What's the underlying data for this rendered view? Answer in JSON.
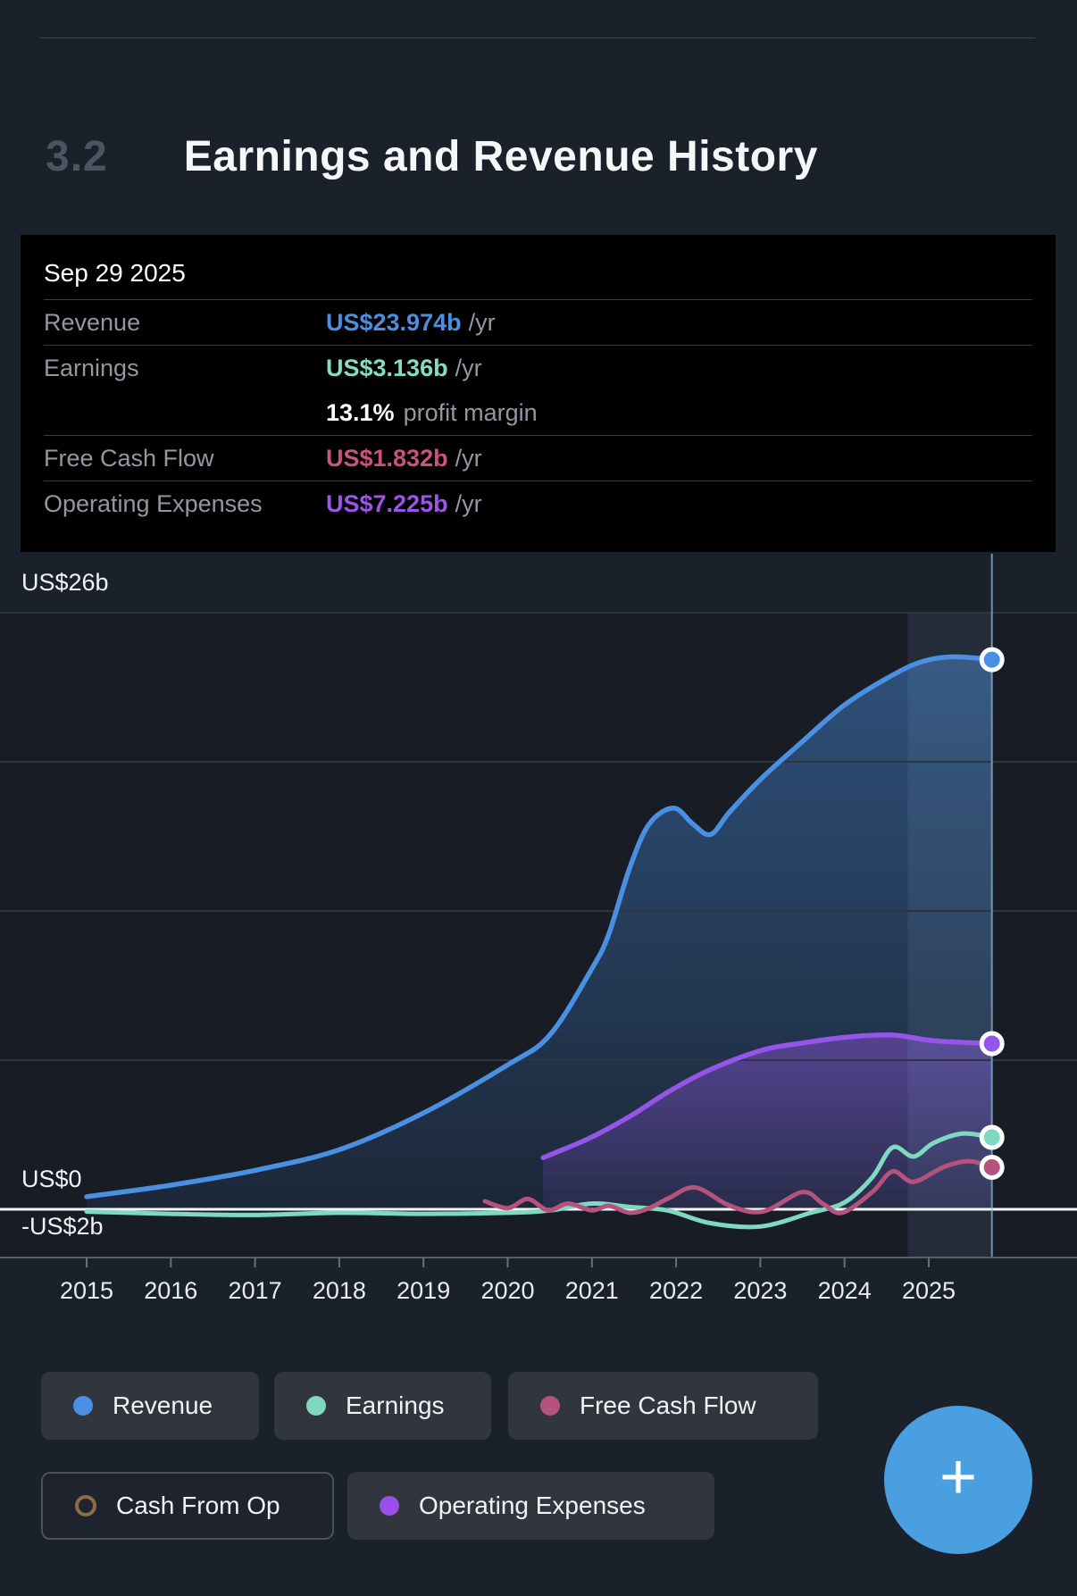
{
  "section": {
    "number": "3.2",
    "title": "Earnings and Revenue History"
  },
  "tooltip": {
    "date": "Sep 29 2025",
    "rows": [
      {
        "label": "Revenue",
        "value": "US$23.974b",
        "suffix": "/yr",
        "color": "#4d8ee0"
      },
      {
        "label": "Earnings",
        "value": "US$3.136b",
        "suffix": "/yr",
        "color": "#85dcc6"
      },
      {
        "label": "Free Cash Flow",
        "value": "US$1.832b",
        "suffix": "/yr",
        "color": "#c9527f"
      },
      {
        "label": "Operating Expenses",
        "value": "US$7.225b",
        "suffix": "/yr",
        "color": "#9b55e8"
      }
    ],
    "profit_margin_value": "13.1%",
    "profit_margin_label": "profit margin"
  },
  "chart_data": {
    "type": "area",
    "title": "Earnings and Revenue History",
    "xlabel": "",
    "ylabel": "",
    "ylim": [
      -2,
      26
    ],
    "x_range": [
      2015,
      2025.75
    ],
    "grid": true,
    "legend_position": "bottom",
    "y_axis_labels": {
      "top": "US$26b",
      "zero": "US$0",
      "bottom": "-US$2b"
    },
    "x_ticks": [
      "2015",
      "2016",
      "2017",
      "2018",
      "2019",
      "2020",
      "2021",
      "2022",
      "2023",
      "2024",
      "2025"
    ],
    "highlight_band_years": [
      2024.75,
      2025.75
    ],
    "crosshair_year": 2025.75,
    "series": [
      {
        "name": "Revenue",
        "color": "#4a90e2",
        "fill": true,
        "points": [
          [
            2015.0,
            0.55
          ],
          [
            2016.0,
            1.05
          ],
          [
            2017.0,
            1.7
          ],
          [
            2018.0,
            2.6
          ],
          [
            2019.0,
            4.2
          ],
          [
            2020.0,
            6.3
          ],
          [
            2020.5,
            7.6
          ],
          [
            2021.0,
            10.5
          ],
          [
            2021.2,
            12.0
          ],
          [
            2021.45,
            14.9
          ],
          [
            2021.68,
            16.8
          ],
          [
            2021.97,
            17.5
          ],
          [
            2022.2,
            16.8
          ],
          [
            2022.41,
            16.35
          ],
          [
            2022.64,
            17.35
          ],
          [
            2023.03,
            18.85
          ],
          [
            2023.5,
            20.4
          ],
          [
            2024.0,
            22.0
          ],
          [
            2024.57,
            23.3
          ],
          [
            2024.93,
            23.9
          ],
          [
            2025.29,
            24.1
          ],
          [
            2025.75,
            23.974
          ]
        ]
      },
      {
        "name": "Operating Expenses",
        "color": "#9455e8",
        "fill": true,
        "points": [
          [
            2020.42,
            2.25
          ],
          [
            2020.72,
            2.7
          ],
          [
            2021.0,
            3.15
          ],
          [
            2021.45,
            4.05
          ],
          [
            2021.92,
            5.15
          ],
          [
            2022.41,
            6.1
          ],
          [
            2023.03,
            6.95
          ],
          [
            2023.5,
            7.25
          ],
          [
            2024.0,
            7.5
          ],
          [
            2024.57,
            7.6
          ],
          [
            2025.06,
            7.35
          ],
          [
            2025.75,
            7.225
          ]
        ]
      },
      {
        "name": "Earnings",
        "color": "#7fd8c0",
        "fill": false,
        "points": [
          [
            2015.0,
            -0.1
          ],
          [
            2016.0,
            -0.2
          ],
          [
            2017.0,
            -0.25
          ],
          [
            2018.0,
            -0.15
          ],
          [
            2019.0,
            -0.2
          ],
          [
            2020.0,
            -0.15
          ],
          [
            2020.5,
            -0.05
          ],
          [
            2021.0,
            0.25
          ],
          [
            2021.45,
            0.1
          ],
          [
            2021.9,
            -0.05
          ],
          [
            2022.4,
            -0.6
          ],
          [
            2023.0,
            -0.75
          ],
          [
            2023.6,
            -0.15
          ],
          [
            2024.0,
            0.3
          ],
          [
            2024.33,
            1.4
          ],
          [
            2024.57,
            2.7
          ],
          [
            2024.82,
            2.3
          ],
          [
            2025.06,
            2.9
          ],
          [
            2025.4,
            3.3
          ],
          [
            2025.75,
            3.136
          ]
        ]
      },
      {
        "name": "Free Cash Flow",
        "color": "#b5527d",
        "fill": false,
        "points": [
          [
            2019.73,
            0.35
          ],
          [
            2020.0,
            0.05
          ],
          [
            2020.24,
            0.45
          ],
          [
            2020.48,
            -0.05
          ],
          [
            2020.72,
            0.25
          ],
          [
            2021.0,
            -0.05
          ],
          [
            2021.2,
            0.15
          ],
          [
            2021.45,
            -0.15
          ],
          [
            2021.68,
            0.05
          ],
          [
            2021.92,
            0.5
          ],
          [
            2022.23,
            0.95
          ],
          [
            2022.64,
            0.15
          ],
          [
            2023.03,
            -0.1
          ],
          [
            2023.5,
            0.75
          ],
          [
            2023.74,
            0.25
          ],
          [
            2023.97,
            -0.15
          ],
          [
            2024.33,
            0.75
          ],
          [
            2024.57,
            1.65
          ],
          [
            2024.82,
            1.2
          ],
          [
            2025.18,
            1.85
          ],
          [
            2025.48,
            2.1
          ],
          [
            2025.75,
            1.832
          ]
        ]
      }
    ]
  },
  "legend": {
    "items": [
      {
        "label": "Revenue",
        "color": "#4a90e2",
        "selected": true
      },
      {
        "label": "Earnings",
        "color": "#7fd8c0",
        "selected": true
      },
      {
        "label": "Free Cash Flow",
        "color": "#b5527d",
        "selected": true
      },
      {
        "label": "Cash From Op",
        "color": "#8a6d45",
        "selected": false
      },
      {
        "label": "Operating Expenses",
        "color": "#9b4fe8",
        "selected": true
      }
    ]
  },
  "fab": {
    "label": "+"
  }
}
